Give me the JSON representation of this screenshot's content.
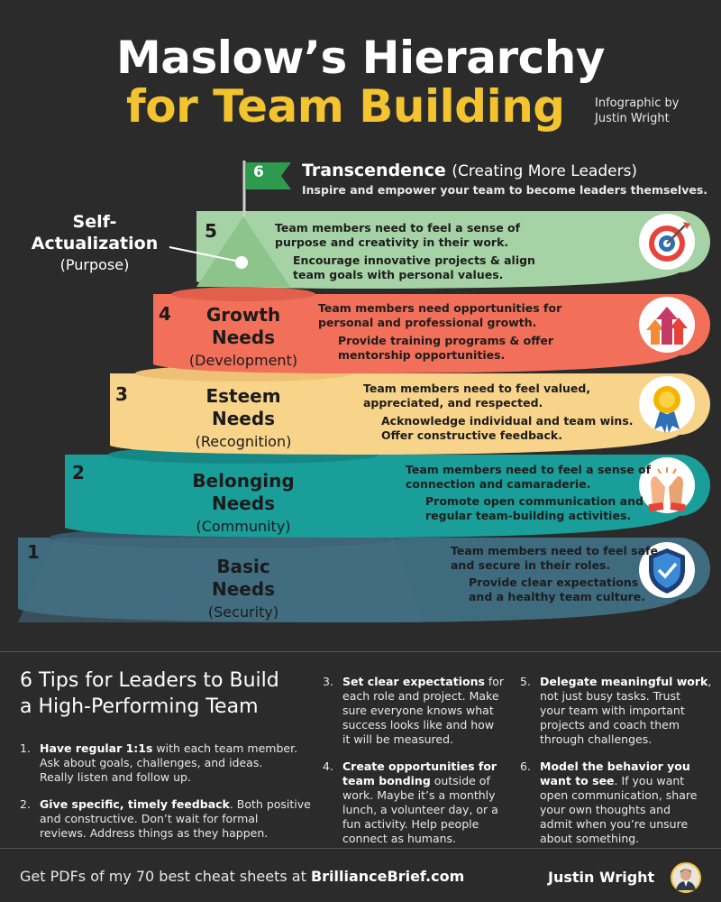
{
  "title": {
    "line1": "Maslow’s Hierarchy",
    "line2": "for Team Building"
  },
  "byline": {
    "line1": "Infographic by",
    "line2": "Justin Wright"
  },
  "top": {
    "number": "6",
    "name": "Transcendence",
    "name_sub": "(Creating More Leaders)",
    "desc": "Inspire and empower your team to become leaders themselves."
  },
  "self_actualization_label": {
    "line1": "Self-",
    "line2": "Actualization",
    "line3": "(Purpose)"
  },
  "levels": [
    {
      "number": "5",
      "desc_line1": "Team members need to feel a sense of",
      "desc_line2": "purpose and creativity in their work.",
      "action_line1": "Encourage innovative projects & align",
      "action_line2": "team goals with personal values.",
      "icon": "target-icon"
    },
    {
      "number": "4",
      "name_line1": "Growth",
      "name_line2": "Needs",
      "name_sub": "(Development)",
      "desc_line1": "Team members need opportunities for",
      "desc_line2": "personal and professional growth.",
      "action_line1": "Provide training programs & offer",
      "action_line2": "mentorship opportunities.",
      "icon": "growth-arrows-icon"
    },
    {
      "number": "3",
      "name_line1": "Esteem",
      "name_line2": "Needs",
      "name_sub": "(Recognition)",
      "desc_line1": "Team members need to feel valued,",
      "desc_line2": "appreciated, and respected.",
      "action_line1": "Acknowledge individual and team wins.",
      "action_line2": "Offer constructive feedback.",
      "icon": "award-medal-icon"
    },
    {
      "number": "2",
      "name_line1": "Belonging",
      "name_line2": "Needs",
      "name_sub": "(Community)",
      "desc_line1": "Team members need to feel a sense of",
      "desc_line2": "connection and camaraderie.",
      "action_line1": "Promote open communication and",
      "action_line2": "regular team-building activities.",
      "icon": "high-five-icon"
    },
    {
      "number": "1",
      "name_line1": "Basic",
      "name_line2": "Needs",
      "name_sub": "(Security)",
      "desc_line1": "Team members need to feel safe",
      "desc_line2": "and secure in their roles.",
      "action_line1": "Provide clear expectations",
      "action_line2": "and a healthy team culture.",
      "icon": "shield-check-icon"
    }
  ],
  "colors": {
    "l5": "#a6d3a6",
    "l4": "#f2705a",
    "l3": "#f8d38a",
    "l2": "#1a9e9a",
    "l1": "#3f6b7f",
    "accent": "#f4c430",
    "flag": "#2d9a4d"
  },
  "tips": {
    "heading_line1": "6 Tips for Leaders to Build",
    "heading_line2": "a High-Performing Team",
    "items": [
      {
        "num": "1.",
        "bold": "Have regular 1:1s",
        "rest_a": " with each team member.",
        "l2": "Ask about goals, challenges, and ideas.",
        "l3": "Really listen and follow up."
      },
      {
        "num": "2.",
        "bold": "Give specific, timely feedback",
        "rest_a": ". Both positive",
        "l2": "and constructive. Don’t wait for formal",
        "l3": "reviews. Address things as they happen."
      },
      {
        "num": "3.",
        "bold": "Set clear expectations",
        "rest_a": " for",
        "l2": "each role and project. Make",
        "l3": "sure everyone knows what",
        "l4": "success looks like and how",
        "l5": "it will be measured."
      },
      {
        "num": "4.",
        "bold": "Create opportunities for",
        "bold2": "team bonding",
        "rest_a": " outside of",
        "l2": "work. Maybe it’s a monthly",
        "l3": "lunch, a volunteer day, or a",
        "l4": "fun activity. Help people",
        "l5": "connect as humans."
      },
      {
        "num": "5.",
        "bold": "Delegate meaningful work",
        "rest_a": ",",
        "l2": "not just busy tasks. Trust",
        "l3": "your team with important",
        "l4": "projects and coach them",
        "l5": "through challenges."
      },
      {
        "num": "6.",
        "bold": "Model the behavior you",
        "bold2": "want to see",
        "rest_a": ". If you want",
        "l2": "open communication, share",
        "l3": "your own thoughts and",
        "l4": "admit when you’re unsure",
        "l5": "about something."
      }
    ]
  },
  "footer": {
    "text": "Get PDFs of my 70 best cheat sheets at ",
    "link": "BrillianceBrief.com",
    "author": "Justin Wright"
  }
}
